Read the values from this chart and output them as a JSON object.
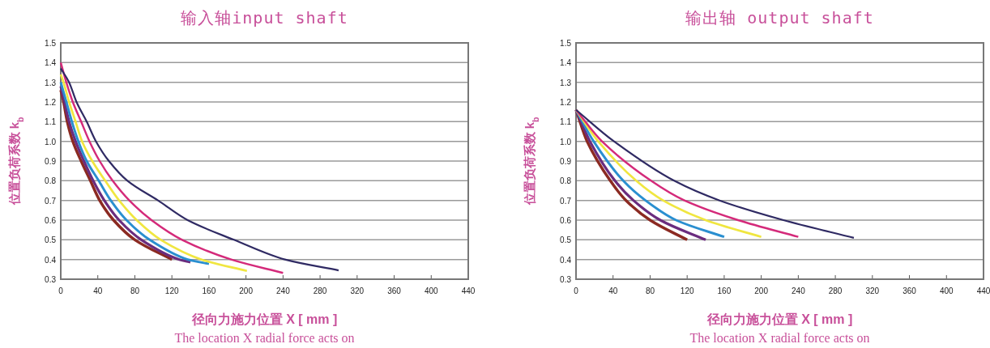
{
  "chart_data": [
    {
      "type": "line",
      "title": "输入轴input shaft",
      "ylabel": "位置负荷系数 k$_{b}$",
      "xlabel": "径向力施力位置 X [ mm ]",
      "annotations": [
        "The location X radial force acts on"
      ],
      "xlim": [
        0,
        440
      ],
      "ylim": [
        0.3,
        1.5
      ],
      "xticks": [
        0,
        40,
        80,
        120,
        160,
        200,
        240,
        280,
        320,
        360,
        400,
        440
      ],
      "yticks": [
        0.3,
        0.4,
        0.5,
        0.6,
        0.7,
        0.8,
        0.9,
        {
          "value": 1,
          "label": "1.0"
        },
        1.1,
        1.2,
        1.3,
        1.4,
        1.5
      ],
      "grid": "y",
      "series": [
        {
          "color": "#8b2a22",
          "x": [
            0,
            3,
            7,
            13,
            22,
            32,
            42,
            57,
            80,
            120
          ],
          "values": [
            1.26,
            1.2,
            1.1,
            1.0,
            0.9,
            0.8,
            0.7,
            0.6,
            0.5,
            0.4
          ]
        },
        {
          "color": "#6a2c7e",
          "x": [
            0,
            4,
            9,
            16,
            25,
            35,
            47,
            63,
            87,
            128,
            140
          ],
          "values": [
            1.28,
            1.2,
            1.1,
            1.0,
            0.9,
            0.8,
            0.7,
            0.6,
            0.5,
            0.4,
            0.387
          ]
        },
        {
          "color": "#2a8fd0",
          "x": [
            0,
            6,
            12,
            19,
            28,
            41,
            54,
            71,
            96,
            137,
            160
          ],
          "values": [
            1.3,
            1.2,
            1.1,
            1.0,
            0.9,
            0.8,
            0.7,
            0.6,
            0.5,
            0.4,
            0.378
          ]
        },
        {
          "color": "#f0e640",
          "x": [
            0,
            3,
            9,
            16,
            23,
            34,
            48,
            63,
            82,
            108,
            152,
            201
          ],
          "values": [
            1.34,
            1.3,
            1.2,
            1.1,
            1.0,
            0.9,
            0.8,
            0.7,
            0.6,
            0.5,
            0.4,
            0.342
          ]
        },
        {
          "color": "#d42a7a",
          "x": [
            0,
            6,
            13,
            22,
            31,
            42,
            56,
            74,
            98,
            131,
            184,
            240
          ],
          "values": [
            1.4,
            1.3,
            1.2,
            1.1,
            1.0,
            0.9,
            0.8,
            0.7,
            0.6,
            0.5,
            0.4,
            0.332
          ]
        },
        {
          "color": "#2f2a63",
          "x": [
            0,
            9,
            17,
            28,
            38,
            52,
            72,
            105,
            137,
            187,
            242,
            300
          ],
          "values": [
            1.37,
            1.3,
            1.2,
            1.1,
            1.0,
            0.9,
            0.8,
            0.7,
            0.6,
            0.5,
            0.4,
            0.345
          ]
        }
      ]
    },
    {
      "type": "line",
      "title": "输出轴 output shaft",
      "ylabel": "位置负荷系数 k$_{b}$",
      "xlabel": "径向力施力位置 X [ mm ]",
      "annotations": [
        "The location X radial force acts on"
      ],
      "xlim": [
        0,
        440
      ],
      "ylim": [
        0.3,
        1.5
      ],
      "xticks": [
        0,
        40,
        80,
        120,
        160,
        200,
        240,
        280,
        320,
        360,
        400,
        440
      ],
      "yticks": [
        0.3,
        0.4,
        0.5,
        0.6,
        0.7,
        0.8,
        0.9,
        {
          "value": 1,
          "label": "1.0"
        },
        1.1,
        1.2,
        1.3,
        1.4,
        1.5
      ],
      "grid": "y",
      "series": [
        {
          "color": "#8b2a22",
          "x": [
            0,
            12,
            37,
            54,
            80,
            120
          ],
          "values": [
            1.16,
            1.0,
            0.8,
            0.7,
            0.6,
            0.5
          ]
        },
        {
          "color": "#6a2c7e",
          "x": [
            0,
            15,
            42,
            62,
            91,
            140
          ],
          "values": [
            1.16,
            1.0,
            0.8,
            0.7,
            0.6,
            0.5
          ]
        },
        {
          "color": "#2a8fd0",
          "x": [
            0,
            19,
            51,
            75,
            108,
            160
          ],
          "values": [
            1.16,
            1.0,
            0.8,
            0.7,
            0.6,
            0.515
          ]
        },
        {
          "color": "#f0e640",
          "x": [
            0,
            24,
            65,
            94,
            140,
            200
          ],
          "values": [
            1.16,
            1.0,
            0.8,
            0.7,
            0.6,
            0.515
          ]
        },
        {
          "color": "#d42a7a",
          "x": [
            0,
            28,
            81,
            117,
            175,
            240
          ],
          "values": [
            1.16,
            1.0,
            0.8,
            0.7,
            0.6,
            0.515
          ]
        },
        {
          "color": "#2f2a63",
          "x": [
            0,
            41,
            106,
            155,
            224,
            300
          ],
          "values": [
            1.16,
            1.0,
            0.8,
            0.7,
            0.6,
            0.51
          ]
        }
      ]
    }
  ]
}
